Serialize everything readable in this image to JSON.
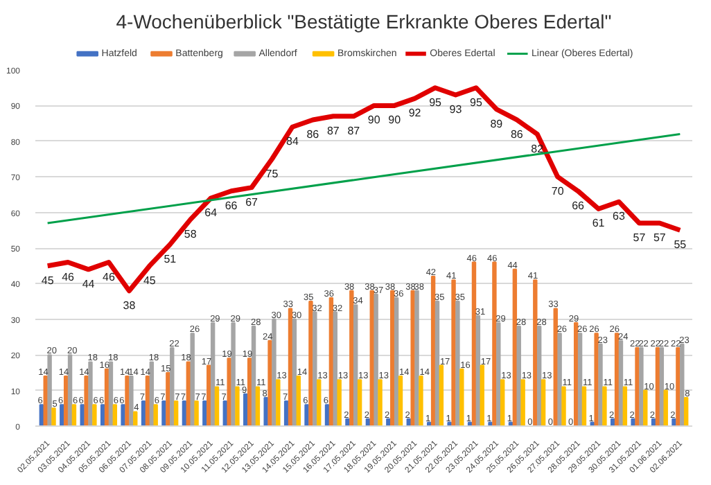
{
  "chart_data": {
    "type": "bar",
    "title": "4-Wochenüberblick \"Bestätigte Erkrankte Oberes Edertal\"",
    "categories": [
      "02.05.2021",
      "03.05.2021",
      "04.05.2021",
      "05.05.2021",
      "06.05.2021",
      "07.05.2021",
      "08.05.2021",
      "09.05.2021",
      "10.05.2021",
      "11.05.2021",
      "12.05.2021",
      "13.05.2021",
      "14.05.2021",
      "15.05.2021",
      "16.05.2021",
      "17.05.2021",
      "18.05.2021",
      "19.05.2021",
      "20.05.2021",
      "21.05.2021",
      "22.05.2021",
      "23.05.2021",
      "24.05.2021",
      "25.05.2021",
      "26.05.2021",
      "27.05.2021",
      "28.05.2021",
      "29.05.2021",
      "30.05.2021",
      "31.05.2021",
      "01.06.2021",
      "02.06.2021"
    ],
    "series": [
      {
        "name": "Hatzfeld",
        "color": "#4472c4",
        "values": [
          6,
          6,
          6,
          6,
          6,
          7,
          7,
          7,
          7,
          7,
          9,
          8,
          7,
          6,
          6,
          2,
          2,
          2,
          2,
          1,
          1,
          1,
          1,
          1,
          0,
          0,
          0,
          1,
          2,
          2,
          2,
          2
        ]
      },
      {
        "name": "Battenberg",
        "color": "#ed7d31",
        "values": [
          14,
          14,
          14,
          16,
          14,
          14,
          15,
          18,
          17,
          19,
          19,
          24,
          33,
          35,
          36,
          38,
          38,
          38,
          38,
          42,
          41,
          46,
          46,
          44,
          41,
          33,
          29,
          26,
          26,
          22,
          22,
          22
        ]
      },
      {
        "name": "Allendorf",
        "color": "#a5a5a5",
        "values": [
          20,
          20,
          18,
          18,
          14,
          18,
          22,
          26,
          29,
          29,
          28,
          30,
          30,
          32,
          32,
          34,
          37,
          36,
          38,
          35,
          35,
          31,
          29,
          28,
          28,
          26,
          26,
          23,
          24,
          22,
          22,
          23
        ]
      },
      {
        "name": "Bromskirchen",
        "color": "#ffc000",
        "values": [
          5,
          6,
          6,
          6,
          4,
          6,
          7,
          7,
          11,
          11,
          11,
          13,
          14,
          13,
          13,
          13,
          13,
          14,
          14,
          17,
          16,
          17,
          13,
          13,
          13,
          11,
          11,
          11,
          11,
          10,
          10,
          8
        ]
      },
      {
        "name": "Oberes Edertal",
        "type": "line",
        "color": "#e00000",
        "values": [
          45,
          46,
          44,
          46,
          38,
          45,
          51,
          58,
          64,
          66,
          67,
          75,
          84,
          86,
          87,
          87,
          90,
          90,
          92,
          95,
          93,
          95,
          89,
          86,
          82,
          70,
          66,
          61,
          63,
          57,
          57,
          55
        ]
      },
      {
        "name": "Linear (Oberes Edertal)",
        "type": "line",
        "color": "#00a04a",
        "x": [
          "02.05.2021",
          "02.06.2021"
        ],
        "values": [
          57,
          82
        ],
        "data_labels": false
      }
    ],
    "ylim": [
      0,
      100
    ],
    "yticks": [
      0,
      10,
      20,
      30,
      40,
      50,
      60,
      70,
      80,
      90,
      100
    ],
    "grid": "y",
    "legend": "top",
    "data_labels": true
  }
}
